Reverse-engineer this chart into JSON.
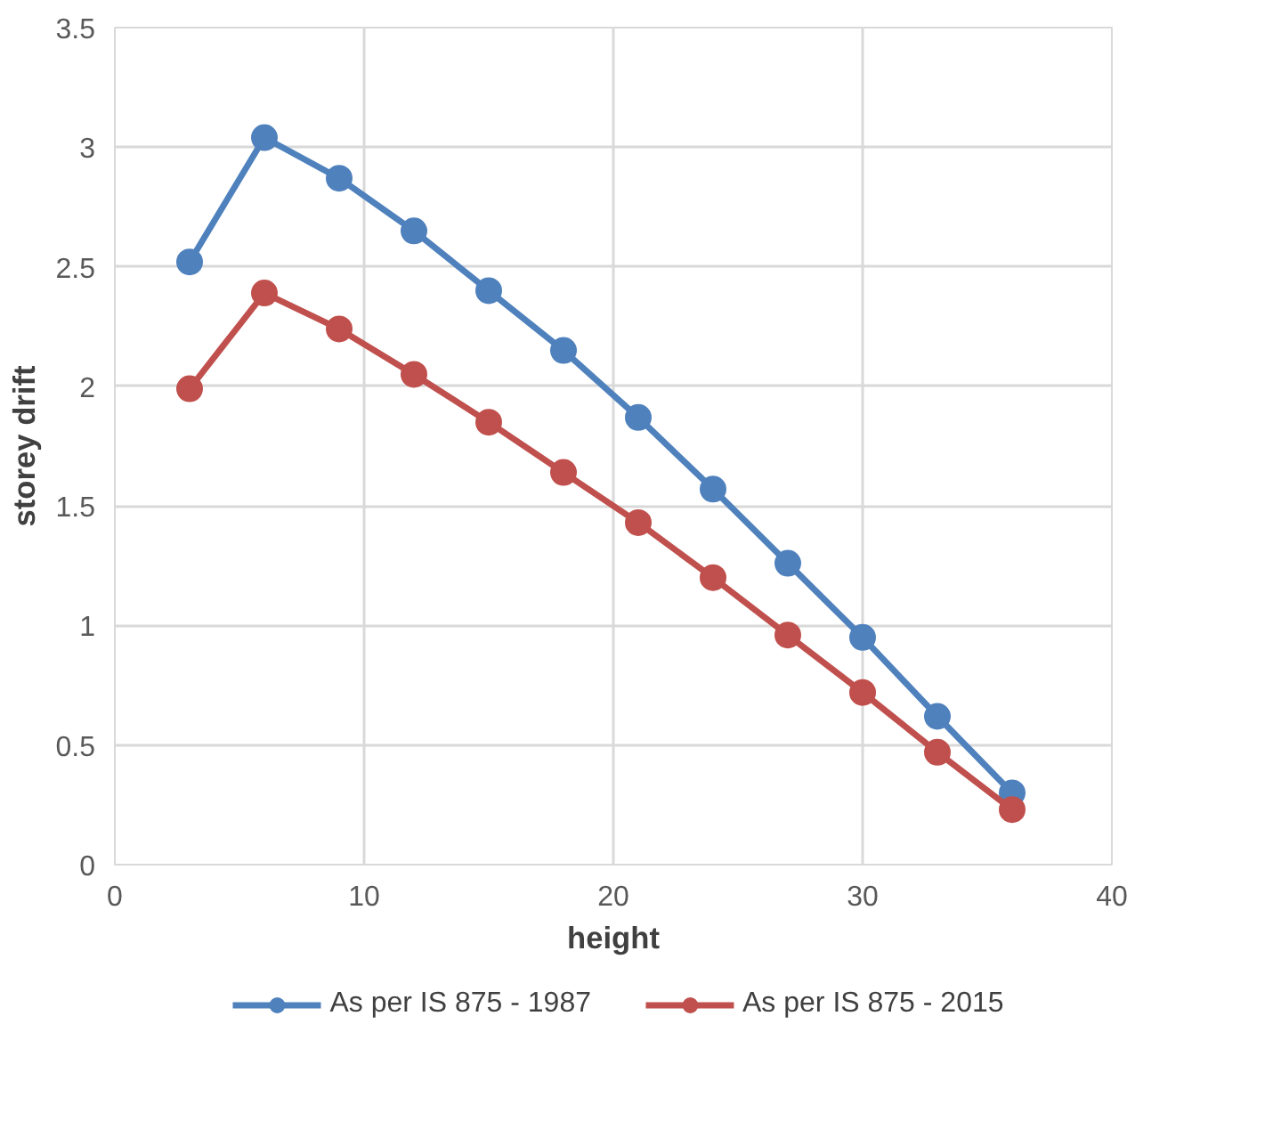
{
  "chart_data": {
    "type": "line",
    "xlabel": "height",
    "ylabel": "storey drift",
    "x": [
      3,
      6,
      9,
      12,
      15,
      18,
      21,
      24,
      27,
      30,
      33,
      36
    ],
    "series": [
      {
        "name": "As per IS 875 - 1987",
        "color": "#4f81bd",
        "values": [
          2.52,
          3.04,
          2.87,
          2.65,
          2.4,
          2.15,
          1.87,
          1.57,
          1.26,
          0.95,
          0.62,
          0.3
        ]
      },
      {
        "name": "As per IS 875 - 2015",
        "color": "#c0504d",
        "values": [
          1.99,
          2.39,
          2.24,
          2.05,
          1.85,
          1.64,
          1.43,
          1.2,
          0.96,
          0.72,
          0.47,
          0.23
        ]
      }
    ],
    "xlim": [
      0,
      40
    ],
    "xticks": [
      0,
      10,
      20,
      30,
      40
    ],
    "ylim": [
      0,
      3.5
    ],
    "yticks": [
      0,
      0.5,
      1,
      1.5,
      2,
      2.5,
      3,
      3.5
    ],
    "grid": true,
    "legend": "bottom",
    "marker": "circle",
    "line_style": "solid"
  }
}
